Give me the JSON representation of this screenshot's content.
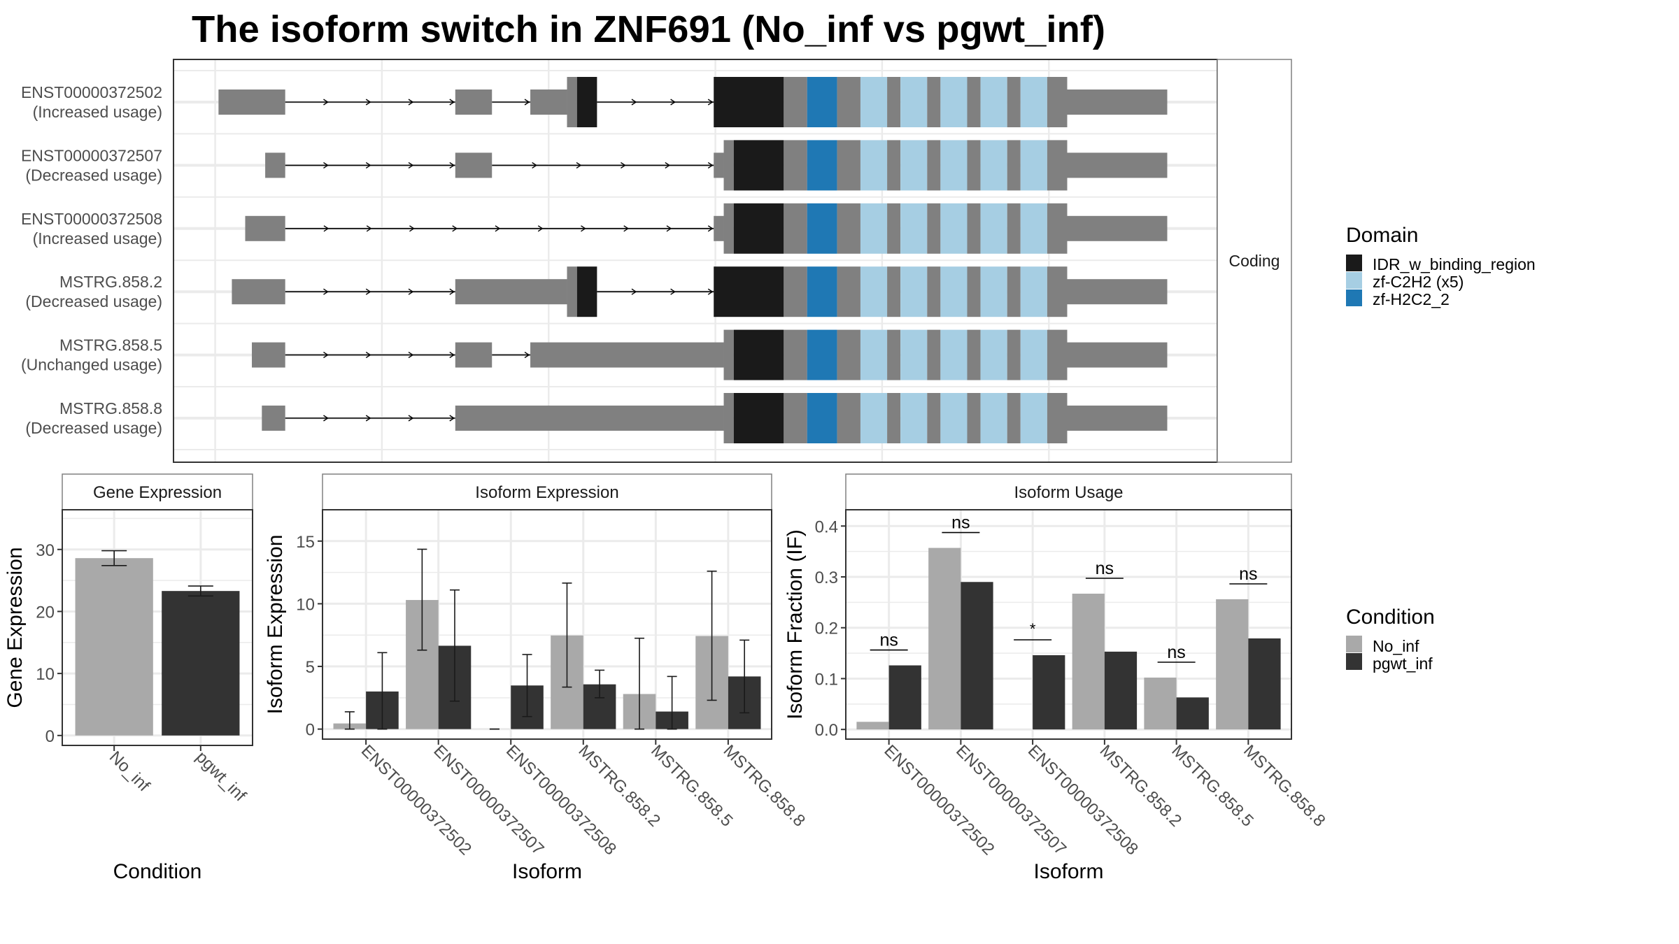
{
  "title": "The isoform switch in ZNF691 (No_inf vs pgwt_inf)",
  "colors": {
    "utr": "#808080",
    "cds": "#808080",
    "IDR_w_binding_region": "#1a1a1a",
    "zf-C2H2 (x5)": "#a6cee3",
    "zf-H2C2_2": "#1f78b4",
    "No_inf": "#a9a9a9",
    "pgwt_inf": "#333333",
    "grid": "#ebebeb",
    "frame": "#333333"
  },
  "chart_data": [
    {
      "type": "transcript-structure",
      "strip": "Coding",
      "xlim": [
        -0.25,
        6.01
      ],
      "gridlines": [
        0,
        1,
        2,
        3,
        4,
        5
      ],
      "transcripts": [
        {
          "id": "ENST00000372502",
          "status": "(Increased usage)",
          "segments": [
            [
              0.02,
              0.42,
              "utr"
            ],
            [
              1.44,
              1.66,
              "utr"
            ],
            [
              1.89,
              2.11,
              "utr"
            ],
            [
              2.11,
              2.17,
              "cds"
            ],
            [
              2.17,
              2.29,
              "IDR_w_binding_region"
            ],
            [
              2.99,
              3.41,
              "IDR_w_binding_region"
            ],
            [
              3.41,
              3.55,
              "cds"
            ],
            [
              3.55,
              3.73,
              "zf-H2C2_2"
            ],
            [
              3.73,
              3.87,
              "cds"
            ],
            [
              3.87,
              4.03,
              "zf-C2H2 (x5)"
            ],
            [
              4.03,
              4.11,
              "cds"
            ],
            [
              4.11,
              4.27,
              "zf-C2H2 (x5)"
            ],
            [
              4.27,
              4.35,
              "cds"
            ],
            [
              4.35,
              4.51,
              "zf-C2H2 (x5)"
            ],
            [
              4.51,
              4.59,
              "cds"
            ],
            [
              4.59,
              4.75,
              "zf-C2H2 (x5)"
            ],
            [
              4.75,
              4.83,
              "cds"
            ],
            [
              4.83,
              4.99,
              "zf-C2H2 (x5)"
            ],
            [
              4.99,
              5.11,
              "cds"
            ],
            [
              5.11,
              5.71,
              "utr"
            ]
          ]
        },
        {
          "id": "ENST00000372507",
          "status": "(Decreased usage)",
          "segments": [
            [
              0.3,
              0.42,
              "utr"
            ],
            [
              1.44,
              1.66,
              "utr"
            ],
            [
              2.99,
              3.05,
              "utr"
            ],
            [
              3.05,
              3.11,
              "cds"
            ],
            [
              3.11,
              3.41,
              "IDR_w_binding_region"
            ],
            [
              3.41,
              3.55,
              "cds"
            ],
            [
              3.55,
              3.73,
              "zf-H2C2_2"
            ],
            [
              3.73,
              3.87,
              "cds"
            ],
            [
              3.87,
              4.03,
              "zf-C2H2 (x5)"
            ],
            [
              4.03,
              4.11,
              "cds"
            ],
            [
              4.11,
              4.27,
              "zf-C2H2 (x5)"
            ],
            [
              4.27,
              4.35,
              "cds"
            ],
            [
              4.35,
              4.51,
              "zf-C2H2 (x5)"
            ],
            [
              4.51,
              4.59,
              "cds"
            ],
            [
              4.59,
              4.75,
              "zf-C2H2 (x5)"
            ],
            [
              4.75,
              4.83,
              "cds"
            ],
            [
              4.83,
              4.99,
              "zf-C2H2 (x5)"
            ],
            [
              4.99,
              5.11,
              "cds"
            ],
            [
              5.11,
              5.71,
              "utr"
            ]
          ]
        },
        {
          "id": "ENST00000372508",
          "status": "(Increased usage)",
          "segments": [
            [
              0.18,
              0.42,
              "utr"
            ],
            [
              2.99,
              3.05,
              "utr"
            ],
            [
              3.05,
              3.11,
              "cds"
            ],
            [
              3.11,
              3.41,
              "IDR_w_binding_region"
            ],
            [
              3.41,
              3.55,
              "cds"
            ],
            [
              3.55,
              3.73,
              "zf-H2C2_2"
            ],
            [
              3.73,
              3.87,
              "cds"
            ],
            [
              3.87,
              4.03,
              "zf-C2H2 (x5)"
            ],
            [
              4.03,
              4.11,
              "cds"
            ],
            [
              4.11,
              4.27,
              "zf-C2H2 (x5)"
            ],
            [
              4.27,
              4.35,
              "cds"
            ],
            [
              4.35,
              4.51,
              "zf-C2H2 (x5)"
            ],
            [
              4.51,
              4.59,
              "cds"
            ],
            [
              4.59,
              4.75,
              "zf-C2H2 (x5)"
            ],
            [
              4.75,
              4.83,
              "cds"
            ],
            [
              4.83,
              4.99,
              "zf-C2H2 (x5)"
            ],
            [
              4.99,
              5.11,
              "cds"
            ],
            [
              5.11,
              5.71,
              "utr"
            ]
          ]
        },
        {
          "id": "MSTRG.858.2",
          "status": "(Decreased usage)",
          "segments": [
            [
              0.1,
              0.42,
              "utr"
            ],
            [
              1.44,
              2.11,
              "utr"
            ],
            [
              2.11,
              2.17,
              "cds"
            ],
            [
              2.17,
              2.29,
              "IDR_w_binding_region"
            ],
            [
              2.99,
              3.41,
              "IDR_w_binding_region"
            ],
            [
              3.41,
              3.55,
              "cds"
            ],
            [
              3.55,
              3.73,
              "zf-H2C2_2"
            ],
            [
              3.73,
              3.87,
              "cds"
            ],
            [
              3.87,
              4.03,
              "zf-C2H2 (x5)"
            ],
            [
              4.03,
              4.11,
              "cds"
            ],
            [
              4.11,
              4.27,
              "zf-C2H2 (x5)"
            ],
            [
              4.27,
              4.35,
              "cds"
            ],
            [
              4.35,
              4.51,
              "zf-C2H2 (x5)"
            ],
            [
              4.51,
              4.59,
              "cds"
            ],
            [
              4.59,
              4.75,
              "zf-C2H2 (x5)"
            ],
            [
              4.75,
              4.83,
              "cds"
            ],
            [
              4.83,
              4.99,
              "zf-C2H2 (x5)"
            ],
            [
              4.99,
              5.11,
              "cds"
            ],
            [
              5.11,
              5.71,
              "utr"
            ]
          ]
        },
        {
          "id": "MSTRG.858.5",
          "status": "(Unchanged usage)",
          "segments": [
            [
              0.22,
              0.42,
              "utr"
            ],
            [
              1.44,
              1.66,
              "utr"
            ],
            [
              1.89,
              3.05,
              "utr"
            ],
            [
              3.05,
              3.11,
              "cds"
            ],
            [
              3.11,
              3.41,
              "IDR_w_binding_region"
            ],
            [
              3.41,
              3.55,
              "cds"
            ],
            [
              3.55,
              3.73,
              "zf-H2C2_2"
            ],
            [
              3.73,
              3.87,
              "cds"
            ],
            [
              3.87,
              4.03,
              "zf-C2H2 (x5)"
            ],
            [
              4.03,
              4.11,
              "cds"
            ],
            [
              4.11,
              4.27,
              "zf-C2H2 (x5)"
            ],
            [
              4.27,
              4.35,
              "cds"
            ],
            [
              4.35,
              4.51,
              "zf-C2H2 (x5)"
            ],
            [
              4.51,
              4.59,
              "cds"
            ],
            [
              4.59,
              4.75,
              "zf-C2H2 (x5)"
            ],
            [
              4.75,
              4.83,
              "cds"
            ],
            [
              4.83,
              4.99,
              "zf-C2H2 (x5)"
            ],
            [
              4.99,
              5.11,
              "cds"
            ],
            [
              5.11,
              5.71,
              "utr"
            ]
          ]
        },
        {
          "id": "MSTRG.858.8",
          "status": "(Decreased usage)",
          "segments": [
            [
              0.28,
              0.42,
              "utr"
            ],
            [
              1.44,
              3.05,
              "utr"
            ],
            [
              3.05,
              3.11,
              "cds"
            ],
            [
              3.11,
              3.41,
              "IDR_w_binding_region"
            ],
            [
              3.41,
              3.55,
              "cds"
            ],
            [
              3.55,
              3.73,
              "zf-H2C2_2"
            ],
            [
              3.73,
              3.87,
              "cds"
            ],
            [
              3.87,
              4.03,
              "zf-C2H2 (x5)"
            ],
            [
              4.03,
              4.11,
              "cds"
            ],
            [
              4.11,
              4.27,
              "zf-C2H2 (x5)"
            ],
            [
              4.27,
              4.35,
              "cds"
            ],
            [
              4.35,
              4.51,
              "zf-C2H2 (x5)"
            ],
            [
              4.51,
              4.59,
              "cds"
            ],
            [
              4.59,
              4.75,
              "zf-C2H2 (x5)"
            ],
            [
              4.75,
              4.83,
              "cds"
            ],
            [
              4.83,
              4.99,
              "zf-C2H2 (x5)"
            ],
            [
              4.99,
              5.11,
              "cds"
            ],
            [
              5.11,
              5.71,
              "utr"
            ]
          ]
        }
      ],
      "legend": {
        "title": "Domain",
        "entries": [
          "IDR_w_binding_region",
          "zf-C2H2 (x5)",
          "zf-H2C2_2"
        ]
      }
    },
    {
      "type": "bar",
      "title": "Gene Expression",
      "xlabel": "Condition",
      "ylabel": "Gene Expression",
      "categories": [
        "No_inf",
        "pgwt_inf"
      ],
      "values": [
        28.6,
        23.3
      ],
      "error_low": [
        27.4,
        22.5
      ],
      "error_high": [
        29.8,
        24.1
      ],
      "ylim": [
        -1.6,
        36.4
      ],
      "yticks": [
        0,
        10,
        20,
        30
      ],
      "grid": true
    },
    {
      "type": "bar",
      "title": "Isoform Expression",
      "xlabel": "Isoform",
      "ylabel": "Isoform Expression",
      "categories": [
        "ENST00000372502",
        "ENST00000372507",
        "ENST00000372508",
        "MSTRG.858.2",
        "MSTRG.858.5",
        "MSTRG.858.8"
      ],
      "series": [
        {
          "name": "No_inf",
          "values": [
            0.45,
            10.3,
            0,
            7.47,
            2.8,
            7.43
          ],
          "error_low": [
            0,
            6.3,
            0,
            3.35,
            0,
            2.3
          ],
          "error_high": [
            1.38,
            14.35,
            0,
            11.65,
            7.25,
            12.6
          ]
        },
        {
          "name": "pgwt_inf",
          "values": [
            3.0,
            6.65,
            3.48,
            3.57,
            1.4,
            4.2
          ],
          "error_low": [
            0,
            2.23,
            1.0,
            2.5,
            0,
            1.3
          ],
          "error_high": [
            6.1,
            11.1,
            5.95,
            4.7,
            4.2,
            7.1
          ]
        }
      ],
      "ylim": [
        -0.8,
        17.5
      ],
      "yticks": [
        0,
        5,
        10,
        15
      ],
      "grid": true
    },
    {
      "type": "bar",
      "title": "Isoform Usage",
      "xlabel": "Isoform",
      "ylabel": "Isoform Fraction (IF)",
      "categories": [
        "ENST00000372502",
        "ENST00000372507",
        "ENST00000372508",
        "MSTRG.858.2",
        "MSTRG.858.5",
        "MSTRG.858.8"
      ],
      "series": [
        {
          "name": "No_inf",
          "values": [
            0.015,
            0.357,
            0,
            0.267,
            0.102,
            0.256
          ]
        },
        {
          "name": "pgwt_inf",
          "values": [
            0.126,
            0.29,
            0.146,
            0.153,
            0.063,
            0.179
          ]
        }
      ],
      "significance": [
        "ns",
        "ns",
        "*",
        "ns",
        "ns",
        "ns"
      ],
      "ylim": [
        -0.019,
        0.432
      ],
      "yticks": [
        0.0,
        0.1,
        0.2,
        0.3,
        0.4
      ],
      "ytick_labels": [
        "0.0",
        "0.1",
        "0.2",
        "0.3",
        "0.4"
      ],
      "grid": true
    }
  ],
  "condition_legend": {
    "title": "Condition",
    "entries": [
      "No_inf",
      "pgwt_inf"
    ]
  }
}
